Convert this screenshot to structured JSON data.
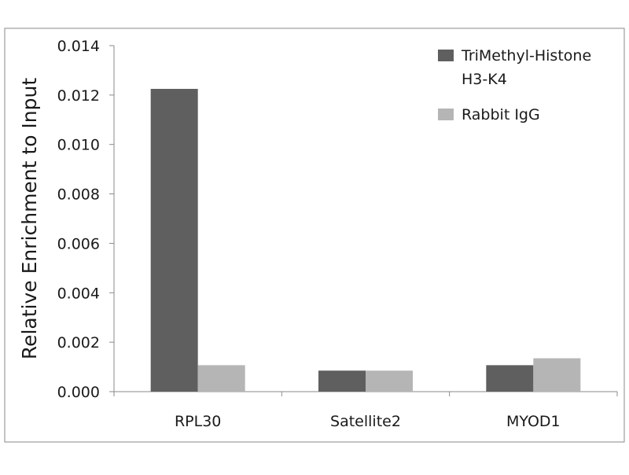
{
  "chart_data": {
    "type": "bar",
    "ylabel": "Relative Enrichment to Input",
    "categories": [
      "RPL30",
      "Satellite2",
      "MYOD1"
    ],
    "series": [
      {
        "name": "TriMethyl-Histone H3-K4",
        "values": [
          0.01225,
          0.00085,
          0.00107
        ],
        "color": "#5f5f5f"
      },
      {
        "name": "Rabbit IgG",
        "values": [
          0.00107,
          0.00085,
          0.00135
        ],
        "color": "#b5b5b5"
      }
    ],
    "ylim": [
      0,
      0.014
    ],
    "yticks": [
      "0.000",
      "0.002",
      "0.004",
      "0.006",
      "0.008",
      "0.010",
      "0.012",
      "0.014"
    ],
    "grid": false,
    "legend_position": "top-right",
    "legend_lines": [
      [
        "TriMethyl-Histone",
        "H3-K4"
      ],
      [
        "Rabbit IgG"
      ]
    ]
  }
}
